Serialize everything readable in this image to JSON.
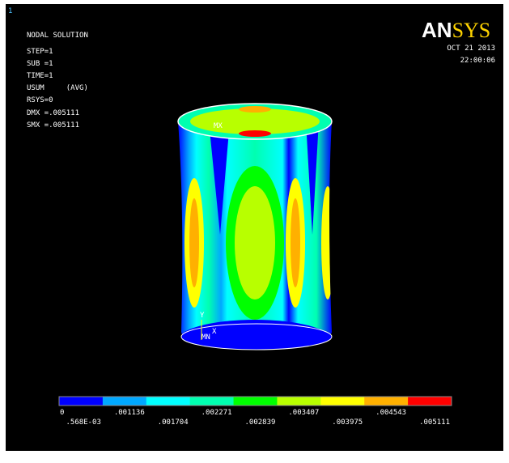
{
  "window_number": "1",
  "info": [
    "NODAL SOLUTION",
    "STEP=1",
    "SUB =1",
    "TIME=1",
    "USUM     (AVG)",
    "RSYS=0",
    "DMX =.005111",
    "SMX =.005111"
  ],
  "logo": [
    "AN",
    "SYS"
  ],
  "date": "OCT 21 2013",
  "time": "22:00:06",
  "markers": {
    "max": "MX",
    "min": "MN",
    "axis_y": "Y",
    "axis_x": "X"
  },
  "legend": {
    "colors": [
      "#0000ff",
      "#00a8ff",
      "#00ffff",
      "#00ffb0",
      "#00ff00",
      "#b8ff00",
      "#ffff00",
      "#ffb000",
      "#ff0000"
    ],
    "labels": [
      "0",
      ".568E-03",
      ".001136",
      ".001704",
      ".002271",
      ".002839",
      ".003407",
      ".003975",
      ".004543",
      ".005111"
    ]
  }
}
